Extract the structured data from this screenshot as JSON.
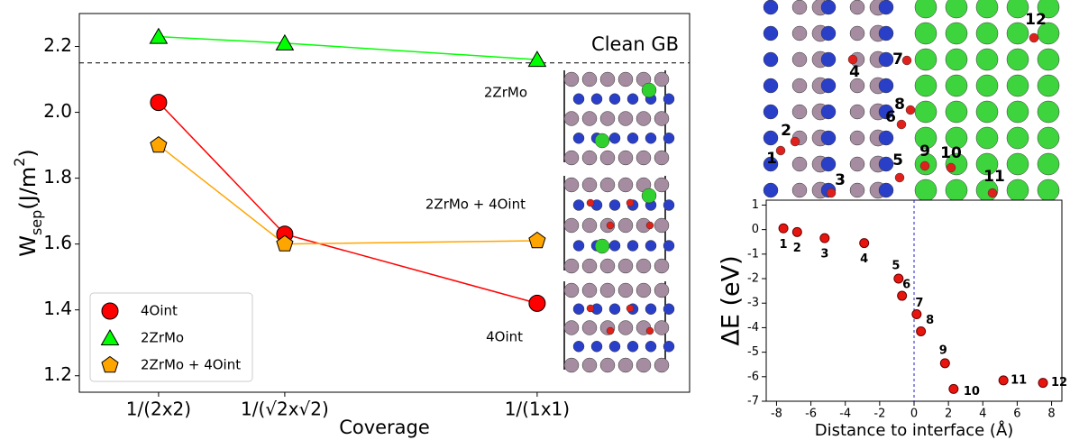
{
  "chart_data": [
    {
      "type": "line",
      "x": [
        0.25,
        0.5,
        1
      ],
      "xlim": [
        0.093,
        1.302
      ],
      "xticks": [
        {
          "value": 0.25,
          "label": "1/(2x2)"
        },
        {
          "value": 0.5,
          "label": "1/(√2x√2)"
        },
        {
          "value": 1,
          "label": "1/(1x1)"
        }
      ],
      "ylim": [
        1.15,
        2.3
      ],
      "yticks": [
        1.2,
        1.4,
        1.6,
        1.8,
        {
          "value": 2,
          "label": "2.0"
        },
        2.2
      ],
      "xlabel": "Coverage",
      "ylabel": [
        "W",
        "sep",
        "(J/m",
        "2",
        ")"
      ],
      "hline": {
        "value": 2.15,
        "label": "Clean GB"
      },
      "annotations": [
        "2ZrMo",
        "2ZrMo + 4Oint",
        "4Oint"
      ],
      "legend": "lower left",
      "series": [
        {
          "name": "4Oint",
          "color": "#ff0000",
          "marker": "circle",
          "values": [
            2.03,
            1.63,
            1.42
          ]
        },
        {
          "name": "2ZrMo",
          "color": "#00ff00",
          "marker": "triangle",
          "values": [
            2.23,
            2.21,
            2.16
          ]
        },
        {
          "name": "2ZrMo + 4Oint",
          "color": "#ffa500",
          "marker": "pentagon",
          "values": [
            1.9,
            1.6,
            1.61
          ]
        }
      ]
    },
    {
      "type": "scatter",
      "x": [
        -7.6,
        -6.8,
        -5.2,
        -2.9,
        -0.9,
        -0.7,
        0.15,
        0.4,
        1.8,
        2.3,
        5.2,
        7.5
      ],
      "values": [
        0.05,
        -0.1,
        -0.35,
        -0.55,
        -2.0,
        -2.7,
        -3.45,
        -4.15,
        -5.45,
        -6.5,
        -6.15,
        -6.25
      ],
      "labels": [
        "1",
        "2",
        "3",
        "4",
        "5",
        "6",
        "7",
        "8",
        "9",
        "10",
        "11",
        "12"
      ],
      "color": "#e8150f",
      "vline": 0,
      "xlim": [
        -8.6,
        8.6
      ],
      "xticks": [
        -8,
        -6,
        -4,
        -2,
        0,
        2,
        4,
        6,
        8
      ],
      "ylim": [
        -7,
        1.2
      ],
      "yticks": [
        1,
        0,
        -1,
        -2,
        -3,
        -4,
        -5,
        -6,
        -7
      ],
      "xlabel": "Distance to interface (Å)",
      "ylabel": "ΔE (eV)"
    }
  ]
}
